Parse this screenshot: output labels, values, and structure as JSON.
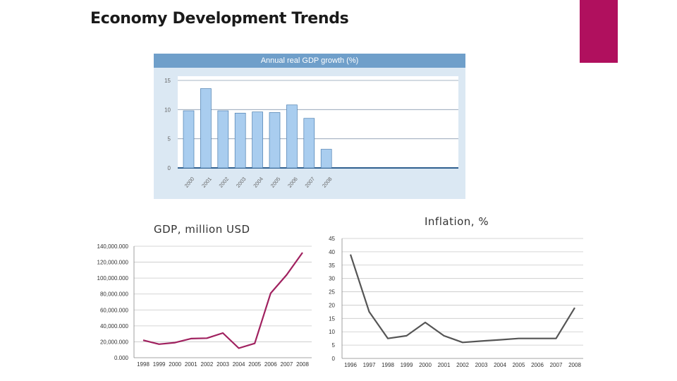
{
  "slide": {
    "title": "Economy Development Trends",
    "accent_color": "#b0105e"
  },
  "chart_data": [
    {
      "type": "bar",
      "title": "Annual real GDP growth (%)",
      "categories": [
        "2000",
        "2001",
        "2002",
        "2003",
        "2004",
        "2005",
        "2006",
        "2007",
        "2008"
      ],
      "values": [
        9.8,
        13.6,
        9.8,
        9.4,
        9.6,
        9.5,
        10.8,
        8.5,
        3.2
      ],
      "yticks": [
        "0",
        "5",
        "10",
        "15"
      ],
      "ylim": [
        0,
        15
      ],
      "grid": true,
      "bar_color": "#a9cdef",
      "header_color": "#6f9fca"
    },
    {
      "type": "line",
      "title": "GDP, million USD",
      "x": [
        "1998",
        "1999",
        "2000",
        "2001",
        "2002",
        "2003",
        "2004",
        "2005",
        "2006",
        "2007",
        "2008"
      ],
      "values": [
        22000,
        17000,
        19000,
        24000,
        24500,
        31000,
        12000,
        18000,
        81000,
        104000,
        132000
      ],
      "yticks": [
        "0.000",
        "20,000.000",
        "40,000.000",
        "60,000.000",
        "80,000.000",
        "100,000.000",
        "120,000.000",
        "140,000.000"
      ],
      "ylim": [
        0,
        140000
      ],
      "grid": true,
      "line_color": "#a0215f"
    },
    {
      "type": "line",
      "title": "Inflation, %",
      "x": [
        "1996",
        "1997",
        "1998",
        "1999",
        "2000",
        "2001",
        "2002",
        "2003",
        "2004",
        "2005",
        "2006",
        "2007",
        "2008"
      ],
      "values": [
        39,
        17.5,
        7.5,
        8.5,
        13.5,
        8.5,
        6,
        6.5,
        7,
        7.5,
        7.5,
        7.5,
        19
      ],
      "yticks": [
        "0",
        "5",
        "10",
        "15",
        "20",
        "25",
        "30",
        "35",
        "40",
        "45"
      ],
      "ylim": [
        0,
        45
      ],
      "grid": true,
      "line_color": "#555555"
    }
  ]
}
